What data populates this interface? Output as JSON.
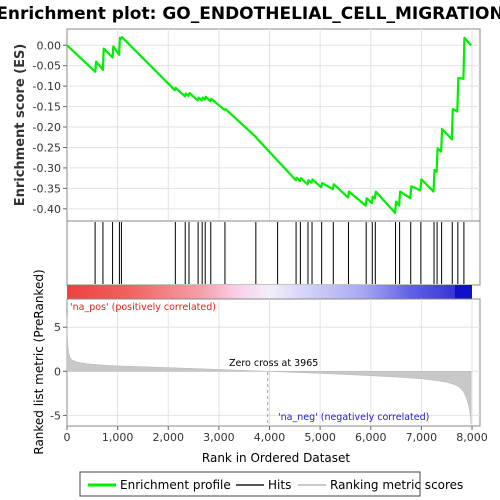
{
  "chart_data": [
    {
      "panel": "enrichment",
      "type": "line",
      "title": "Enrichment plot: GO_ENDOTHELIAL_CELL_MIGRATION",
      "ylabel": "Enrichment score (ES)",
      "ylim": [
        -0.42,
        0.03
      ],
      "xlim": [
        0,
        8000
      ],
      "yticks": [
        0.0,
        -0.05,
        -0.1,
        -0.15,
        -0.2,
        -0.25,
        -0.3,
        -0.35,
        -0.4
      ],
      "ytick_labels": [
        "0.00",
        "-0.05",
        "-0.10",
        "-0.15",
        "-0.20",
        "-0.25",
        "-0.30",
        "-0.35",
        "-0.40"
      ],
      "grid": true,
      "series": [
        {
          "name": "Enrichment profile",
          "color": "#00ee00",
          "x": [
            0,
            560,
            575,
            710,
            725,
            900,
            915,
            1030,
            1045,
            1070,
            1085,
            2130,
            2145,
            2330,
            2345,
            2400,
            2420,
            2580,
            2600,
            2660,
            2680,
            2720,
            2740,
            2830,
            2850,
            3110,
            3130,
            3720,
            3740,
            4520,
            4535,
            4600,
            4620,
            4750,
            4770,
            4830,
            4850,
            5020,
            5040,
            5250,
            5270,
            5550,
            5570,
            5900,
            5920,
            6020,
            6040,
            6080,
            6100,
            6480,
            6500,
            6560,
            6580,
            6780,
            6800,
            6980,
            7000,
            7240,
            7260,
            7300,
            7320,
            7390,
            7410,
            7600,
            7620,
            7710,
            7730,
            7830,
            7850,
            7980
          ],
          "y": [
            0.0,
            -0.065,
            -0.04,
            -0.06,
            -0.008,
            -0.03,
            -0.003,
            -0.023,
            0.018,
            0.016,
            0.02,
            -0.11,
            -0.104,
            -0.125,
            -0.118,
            -0.124,
            -0.117,
            -0.135,
            -0.128,
            -0.135,
            -0.128,
            -0.133,
            -0.126,
            -0.137,
            -0.131,
            -0.158,
            -0.156,
            -0.223,
            -0.226,
            -0.33,
            -0.324,
            -0.332,
            -0.325,
            -0.34,
            -0.33,
            -0.336,
            -0.328,
            -0.347,
            -0.337,
            -0.352,
            -0.34,
            -0.372,
            -0.358,
            -0.392,
            -0.374,
            -0.386,
            -0.37,
            -0.375,
            -0.358,
            -0.41,
            -0.382,
            -0.392,
            -0.358,
            -0.374,
            -0.345,
            -0.355,
            -0.328,
            -0.358,
            -0.305,
            -0.31,
            -0.252,
            -0.26,
            -0.205,
            -0.23,
            -0.156,
            -0.162,
            -0.08,
            -0.082,
            0.018,
            0.0
          ]
        }
      ]
    },
    {
      "panel": "hits",
      "type": "scatter",
      "name": "Hits",
      "x": [
        555,
        710,
        900,
        1035,
        1075,
        2140,
        2335,
        2410,
        2590,
        2670,
        2730,
        2840,
        3120,
        3730,
        4160,
        4525,
        4610,
        4760,
        4840,
        5030,
        5260,
        5560,
        5910,
        6030,
        6090,
        6490,
        6570,
        6790,
        6990,
        7250,
        7310,
        7400,
        7610,
        7720,
        7840
      ]
    },
    {
      "panel": "ranked_list",
      "type": "area",
      "xlabel": "Rank in Ordered Dataset",
      "ylabel": "Ranked list metric (PreRanked)",
      "ylim": [
        -6.2,
        8.2
      ],
      "xlim": [
        0,
        8000
      ],
      "yticks": [
        5,
        0,
        -5
      ],
      "ytick_labels": [
        "5",
        "0",
        "-5"
      ],
      "xticks": [
        0,
        1000,
        2000,
        3000,
        4000,
        5000,
        6000,
        7000,
        8000
      ],
      "xtick_labels": [
        "0",
        "1,000",
        "2,000",
        "3,000",
        "4,000",
        "5,000",
        "6,000",
        "7,000",
        "8,000"
      ],
      "grid": true,
      "series": [
        {
          "name": "Ranking metric scores",
          "color": "#c0c0c0",
          "x": [
            0,
            10,
            30,
            60,
            100,
            200,
            400,
            700,
            1000,
            1500,
            2000,
            2500,
            3000,
            3500,
            3965,
            4500,
            5000,
            5500,
            6000,
            6500,
            7000,
            7300,
            7500,
            7650,
            7750,
            7830,
            7880,
            7920,
            7950,
            7970,
            7980
          ],
          "y": [
            6.2,
            3.5,
            2.2,
            1.6,
            1.3,
            1.05,
            0.85,
            0.72,
            0.62,
            0.52,
            0.42,
            0.32,
            0.22,
            0.1,
            0.0,
            -0.12,
            -0.24,
            -0.36,
            -0.5,
            -0.66,
            -0.85,
            -1.05,
            -1.25,
            -1.5,
            -1.8,
            -2.3,
            -2.9,
            -3.6,
            -4.4,
            -5.2,
            -6.0
          ]
        }
      ],
      "annotations": {
        "positive": "'na_pos' (positively correlated)",
        "negative": "'na_neg' (negatively correlated)",
        "zero_cross": "Zero cross at 3965"
      },
      "zero_cross_x": 3965
    }
  ],
  "legend": {
    "placement": "bottom",
    "items": [
      {
        "label": "Enrichment profile",
        "color": "#00ee00"
      },
      {
        "label": "Hits",
        "color": "#555555"
      },
      {
        "label": "Ranking metric scores",
        "color": "#c8c8c8"
      }
    ]
  },
  "colors": {
    "profile": "#00ee00",
    "positive_text": "#e02020",
    "negative_text": "#2020d0",
    "hit_line": "#000000"
  }
}
